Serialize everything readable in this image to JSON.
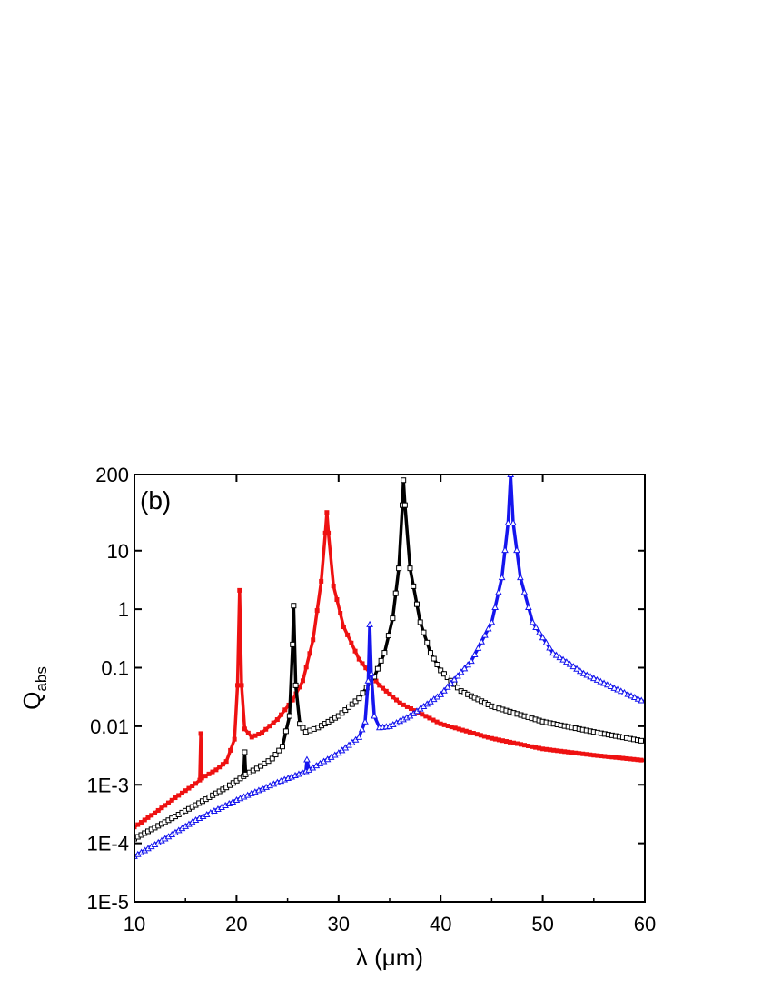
{
  "chart_data": {
    "type": "line",
    "panel_label": "(b)",
    "xlabel": "λ (μm)",
    "ylabel": "Q",
    "ylabel_subscript": "abs",
    "xlim": [
      10,
      60
    ],
    "ylim": [
      1e-05,
      200
    ],
    "yscale": "log",
    "x_ticks": [
      10,
      20,
      30,
      40,
      50,
      60
    ],
    "x_tick_labels": [
      "10",
      "20",
      "30",
      "40",
      "50",
      "60"
    ],
    "y_ticks": [
      1e-05,
      0.0001,
      0.001,
      0.01,
      0.1,
      1,
      10,
      200
    ],
    "y_tick_labels": [
      "1E-5",
      "1E-4",
      "1E-3",
      "0.01",
      "0.1",
      "1",
      "10",
      "200"
    ],
    "grid": false,
    "legend": "none",
    "series": [
      {
        "color": "#ee1111",
        "marker": "square-filled",
        "points": [
          [
            10,
            0.00019
          ],
          [
            12,
            0.00033
          ],
          [
            14,
            0.0006
          ],
          [
            16,
            0.00105
          ],
          [
            16.4,
            0.0012
          ],
          [
            16.5,
            0.0075
          ],
          [
            16.6,
            0.0013
          ],
          [
            18,
            0.0018
          ],
          [
            19,
            0.0025
          ],
          [
            19.8,
            0.006
          ],
          [
            20.1,
            0.05
          ],
          [
            20.3,
            2.1
          ],
          [
            20.5,
            0.05
          ],
          [
            20.8,
            0.009
          ],
          [
            21.5,
            0.0065
          ],
          [
            22.5,
            0.0078
          ],
          [
            24,
            0.013
          ],
          [
            25.5,
            0.028
          ],
          [
            26.5,
            0.06
          ],
          [
            27.5,
            0.3
          ],
          [
            28.3,
            3
          ],
          [
            28.7,
            20
          ],
          [
            28.85,
            45
          ],
          [
            29.0,
            20
          ],
          [
            29.5,
            2.5
          ],
          [
            30.5,
            0.5
          ],
          [
            32,
            0.14
          ],
          [
            34,
            0.05
          ],
          [
            36,
            0.025
          ],
          [
            40,
            0.011
          ],
          [
            45,
            0.0062
          ],
          [
            50,
            0.0041
          ],
          [
            55,
            0.0032
          ],
          [
            60,
            0.0026
          ]
        ]
      },
      {
        "color": "#000000",
        "marker": "square-open",
        "points": [
          [
            10,
            0.00012
          ],
          [
            13,
            0.00023
          ],
          [
            16,
            0.00045
          ],
          [
            19,
            0.0009
          ],
          [
            20.7,
            0.0014
          ],
          [
            20.8,
            0.0036
          ],
          [
            20.9,
            0.0015
          ],
          [
            22,
            0.0019
          ],
          [
            23.5,
            0.0028
          ],
          [
            24.5,
            0.0045
          ],
          [
            25.2,
            0.015
          ],
          [
            25.5,
            0.25
          ],
          [
            25.6,
            1.15
          ],
          [
            25.8,
            0.05
          ],
          [
            26.2,
            0.011
          ],
          [
            26.8,
            0.008
          ],
          [
            28,
            0.0095
          ],
          [
            30,
            0.015
          ],
          [
            32,
            0.03
          ],
          [
            33.5,
            0.07
          ],
          [
            34.5,
            0.18
          ],
          [
            35.3,
            0.7
          ],
          [
            35.9,
            5
          ],
          [
            36.25,
            60
          ],
          [
            36.35,
            160
          ],
          [
            36.5,
            60
          ],
          [
            37,
            5
          ],
          [
            38,
            0.6
          ],
          [
            39,
            0.18
          ],
          [
            40,
            0.09
          ],
          [
            42,
            0.04
          ],
          [
            45,
            0.022
          ],
          [
            50,
            0.012
          ],
          [
            55,
            0.008
          ],
          [
            60,
            0.0055
          ]
        ]
      },
      {
        "color": "#1515ee",
        "marker": "triangle-open",
        "points": [
          [
            10,
            6e-05
          ],
          [
            13,
            0.00012
          ],
          [
            16,
            0.00025
          ],
          [
            20,
            0.00055
          ],
          [
            24,
            0.0011
          ],
          [
            26.8,
            0.0017
          ],
          [
            26.9,
            0.0027
          ],
          [
            27.1,
            0.0018
          ],
          [
            30,
            0.0035
          ],
          [
            32,
            0.0065
          ],
          [
            32.6,
            0.012
          ],
          [
            32.9,
            0.06
          ],
          [
            33.05,
            0.55
          ],
          [
            33.2,
            0.08
          ],
          [
            33.5,
            0.015
          ],
          [
            34,
            0.0095
          ],
          [
            35,
            0.01
          ],
          [
            37,
            0.015
          ],
          [
            40,
            0.035
          ],
          [
            43,
            0.13
          ],
          [
            45,
            0.6
          ],
          [
            46,
            3.5
          ],
          [
            46.6,
            30
          ],
          [
            46.85,
            200
          ],
          [
            47.1,
            30
          ],
          [
            47.8,
            3.5
          ],
          [
            49,
            0.6
          ],
          [
            51,
            0.18
          ],
          [
            54,
            0.08
          ],
          [
            57,
            0.045
          ],
          [
            60,
            0.026
          ]
        ]
      }
    ]
  }
}
